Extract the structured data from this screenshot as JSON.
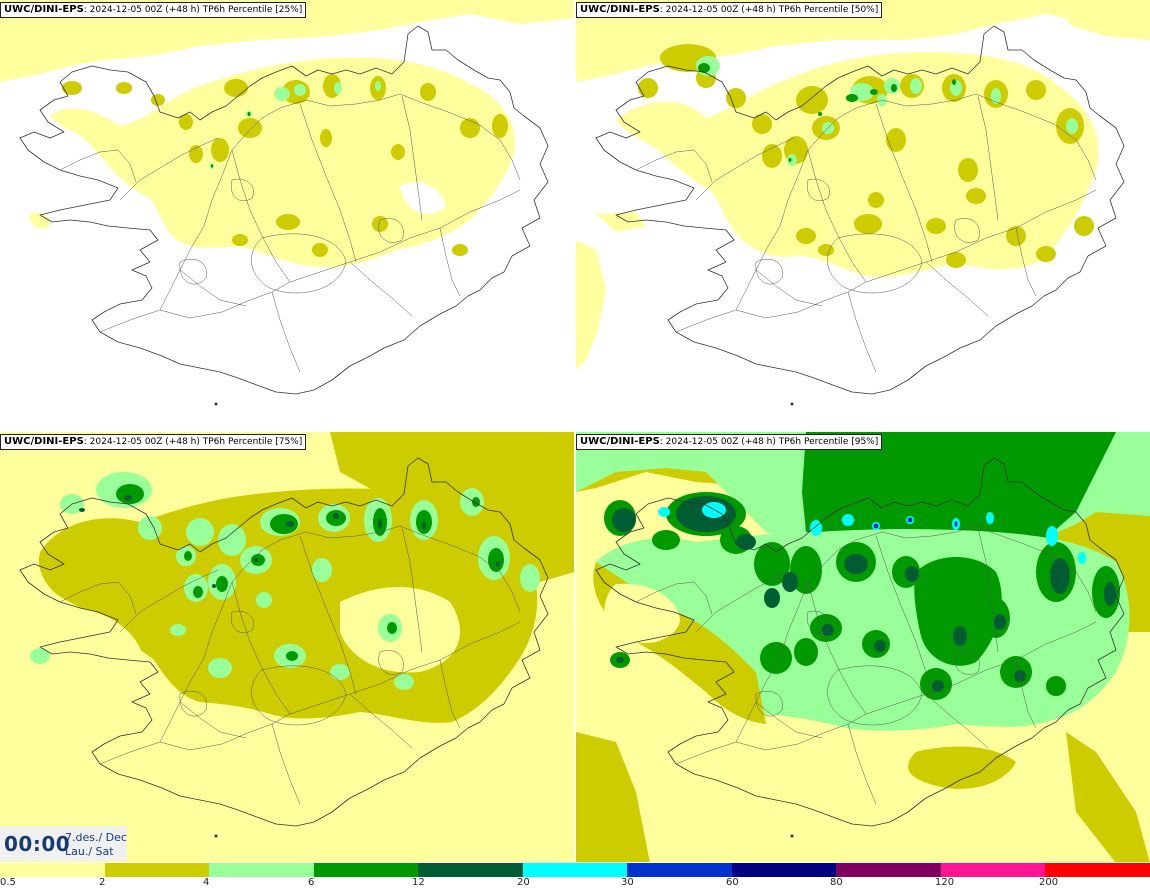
{
  "panels": [
    {
      "model": "UWC/DINI-EPS",
      "run": ": 2024-12-05 00Z (+48 h) TP6h Percentile [25%]",
      "level": 1
    },
    {
      "model": "UWC/DINI-EPS",
      "run": ": 2024-12-05 00Z (+48 h) TP6h Percentile [50%]",
      "level": 2
    },
    {
      "model": "UWC/DINI-EPS",
      "run": ": 2024-12-05 00Z (+48 h) TP6h Percentile [75%]",
      "level": 3
    },
    {
      "model": "UWC/DINI-EPS",
      "run": ": 2024-12-05 00Z (+48 h) TP6h Percentile [95%]",
      "level": 4
    }
  ],
  "clock": {
    "time": "00:00",
    "date_line1": "7.des./ Dec",
    "date_line2": "Lau./ Sat"
  },
  "legend": {
    "bins": [
      {
        "from": "0.5",
        "to": "2",
        "color": "#ffff9e"
      },
      {
        "from": "2",
        "to": "4",
        "color": "#cccc00"
      },
      {
        "from": "4",
        "to": "6",
        "color": "#99ff99"
      },
      {
        "from": "6",
        "to": "12",
        "color": "#009900"
      },
      {
        "from": "12",
        "to": "20",
        "color": "#005c33"
      },
      {
        "from": "20",
        "to": "30",
        "color": "#00ffff"
      },
      {
        "from": "30",
        "to": "60",
        "color": "#0033cc"
      },
      {
        "from": "60",
        "to": "80",
        "color": "#000080"
      },
      {
        "from": "80",
        "to": "120",
        "color": "#800060"
      },
      {
        "from": "120",
        "to": "200",
        "color": "#ff1493"
      },
      {
        "from": "200",
        "to": "",
        "color": "#ff0000"
      }
    ],
    "ticks": [
      "0.5",
      "2",
      "4",
      "6",
      "12",
      "20",
      "30",
      "60",
      "80",
      "120",
      "200"
    ]
  }
}
